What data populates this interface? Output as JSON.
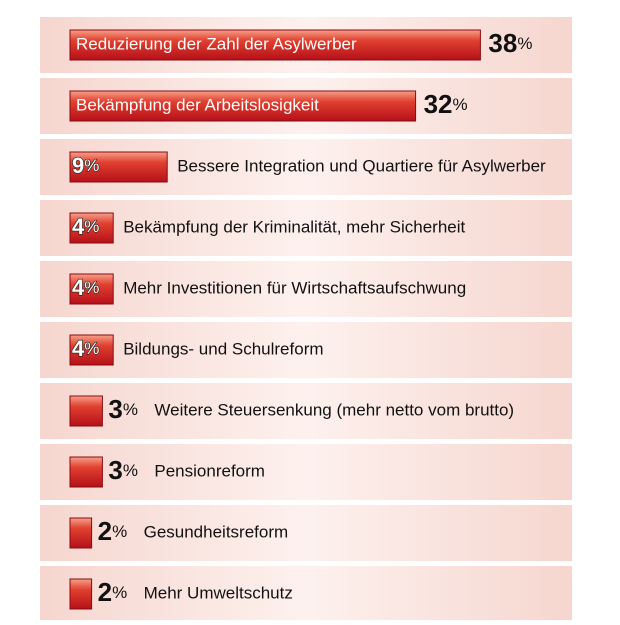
{
  "chart_data": {
    "type": "bar",
    "color": "#d92027",
    "categories": [
      "Reduzierung der Zahl der Asylwerber",
      "Bekämpfung der Arbeitslosigkeit",
      "Bessere Integration und Quartiere für Asylwerber",
      "Bekämpfung der Kriminalität, mehr Sicherheit",
      "Mehr Investitionen für Wirtschaftsaufschwung",
      "Bildungs- und Schulreform",
      "Weitere Steuersenkung (mehr netto vom brutto)",
      "Pensionreform",
      "Gesundheitsreform",
      "Mehr Umweltschutz"
    ],
    "values": [
      38,
      32,
      9,
      4,
      4,
      4,
      3,
      3,
      2,
      2
    ],
    "value_labels": [
      "38%",
      "32%",
      "9%",
      "4%",
      "4%",
      "4%",
      "3%",
      "3%",
      "2%",
      "2%"
    ]
  }
}
